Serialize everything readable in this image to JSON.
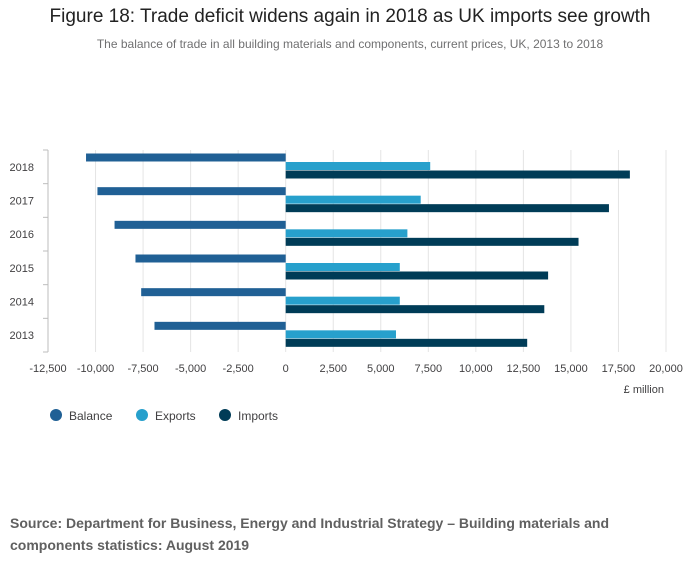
{
  "page": {
    "title": "Figure 18: Trade deficit widens again in 2018 as UK imports see growth",
    "subtitle": "The balance of trade in all building materials and components, current prices, UK, 2013 to 2018",
    "source": "Source: Department for Business, Energy and Industrial Strategy – Building materials and components statistics: August 2019"
  },
  "colors": {
    "Balance": "#206095",
    "Exports": "#27a0cc",
    "Imports": "#003c57",
    "grid": "#e4e4e4",
    "axis": "#bdbdbd"
  },
  "chart_data": {
    "type": "bar",
    "orientation": "horizontal",
    "title": "Figure 18: Trade deficit widens again in 2018 as UK imports see growth",
    "subtitle": "The balance of trade in all building materials and components, current prices, UK, 2013 to 2018",
    "categories": [
      "2018",
      "2017",
      "2016",
      "2015",
      "2014",
      "2013"
    ],
    "series": [
      {
        "name": "Balance",
        "values": [
          -10500,
          -9900,
          -9000,
          -7900,
          -7600,
          -6900
        ]
      },
      {
        "name": "Exports",
        "values": [
          7600,
          7100,
          6400,
          6000,
          6000,
          5800
        ]
      },
      {
        "name": "Imports",
        "values": [
          18100,
          17000,
          15400,
          13800,
          13600,
          12700
        ]
      }
    ],
    "xlabel": "£ million",
    "ylabel": "",
    "xlim": [
      -12500,
      20000
    ],
    "xticks": [
      -12500,
      -10000,
      -7500,
      -5000,
      -2500,
      0,
      2500,
      5000,
      7500,
      10000,
      12500,
      15000,
      17500,
      20000
    ],
    "xtick_labels": [
      "-12,500",
      "-10,000",
      "-7,500",
      "-5,000",
      "-2,500",
      "0",
      "2,500",
      "5,000",
      "7,500",
      "10,000",
      "12,500",
      "15,000",
      "17,500",
      "20,000"
    ],
    "grid": true,
    "legend_position": "bottom-left"
  }
}
